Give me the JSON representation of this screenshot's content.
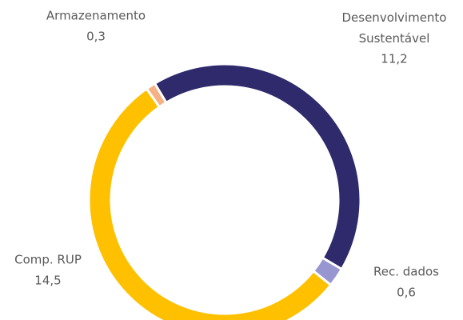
{
  "chart_data": {
    "type": "donut",
    "categories": [
      "Desenvolvimento Sustentável",
      "Rec. dados",
      "Comp. RUP",
      "Armazenamento"
    ],
    "values": [
      11.2,
      0.6,
      14.5,
      0.3
    ],
    "value_labels": [
      "11,2",
      "0,6",
      "14,5",
      "0,3"
    ],
    "colors": [
      "#2e2a6b",
      "#9896d0",
      "#ffc000",
      "#f4b183"
    ]
  }
}
